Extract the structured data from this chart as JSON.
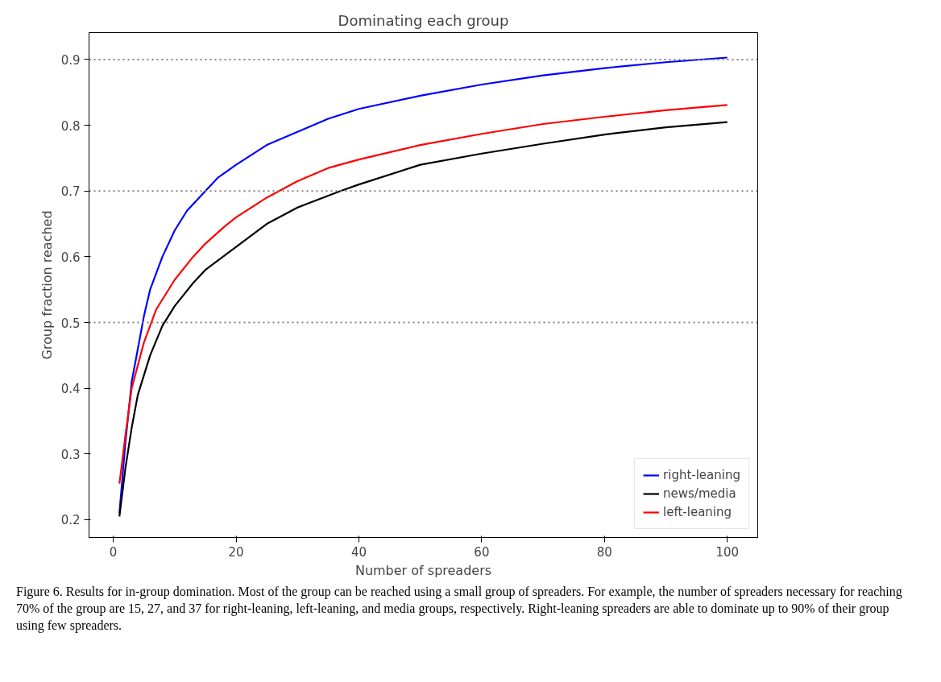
{
  "chart_data": {
    "type": "line",
    "title": "Dominating each group",
    "xlabel": "Number of spreaders",
    "ylabel": "Group fraction reached",
    "xlim": [
      -3.95,
      104.95
    ],
    "ylim": [
      0.173,
      0.941
    ],
    "xticks": [
      0,
      20,
      40,
      60,
      80,
      100
    ],
    "yticks": [
      0.2,
      0.3,
      0.4,
      0.5,
      0.6,
      0.7,
      0.8,
      0.9
    ],
    "grid": false,
    "legend": "bottom right",
    "line_style": "solid",
    "marker": "none",
    "ref_lines": [
      {
        "axis": "y",
        "value": 0.5,
        "color": "#808080",
        "line_style": "dotted"
      },
      {
        "axis": "y",
        "value": 0.7,
        "color": "#808080",
        "line_style": "dotted"
      },
      {
        "axis": "y",
        "value": 0.9,
        "color": "#808080",
        "line_style": "dotted"
      }
    ],
    "series": [
      {
        "name": "right-leaning",
        "color": "#0000ff",
        "x": [
          1,
          2,
          3,
          4,
          5,
          6,
          8,
          10,
          12,
          15,
          17,
          20,
          25,
          30,
          35,
          40,
          50,
          60,
          70,
          80,
          90,
          100
        ],
        "values": [
          0.21,
          0.32,
          0.41,
          0.46,
          0.51,
          0.55,
          0.6,
          0.64,
          0.67,
          0.7,
          0.72,
          0.74,
          0.77,
          0.79,
          0.81,
          0.825,
          0.845,
          0.862,
          0.876,
          0.887,
          0.896,
          0.903
        ]
      },
      {
        "name": "news/media",
        "color": "#000000",
        "x": [
          1,
          2,
          3,
          4,
          5,
          6,
          8,
          10,
          13,
          15,
          20,
          25,
          30,
          37,
          40,
          50,
          60,
          70,
          80,
          90,
          100
        ],
        "values": [
          0.205,
          0.28,
          0.34,
          0.39,
          0.42,
          0.45,
          0.495,
          0.525,
          0.56,
          0.58,
          0.615,
          0.65,
          0.675,
          0.7,
          0.71,
          0.74,
          0.757,
          0.772,
          0.786,
          0.797,
          0.805
        ]
      },
      {
        "name": "left-leaning",
        "color": "#ff0000",
        "x": [
          1,
          2,
          3,
          5,
          7,
          10,
          13,
          15,
          18,
          20,
          25,
          27,
          30,
          35,
          40,
          50,
          60,
          70,
          80,
          90,
          100
        ],
        "values": [
          0.255,
          0.33,
          0.4,
          0.47,
          0.52,
          0.565,
          0.6,
          0.62,
          0.645,
          0.66,
          0.69,
          0.7,
          0.715,
          0.735,
          0.748,
          0.77,
          0.787,
          0.802,
          0.813,
          0.823,
          0.831
        ]
      }
    ],
    "annotations": [
      "Figure 6. Results for in-group domination. Most of the group can be reached using a small group of spreaders. For example, the number of spreaders necessary for reaching 70% of the group are 15, 27, and 37 for right-leaning, left-leaning, and media groups, respectively. Right-leaning spreaders are able to dominate up to 90% of their group using few spreaders."
    ]
  }
}
